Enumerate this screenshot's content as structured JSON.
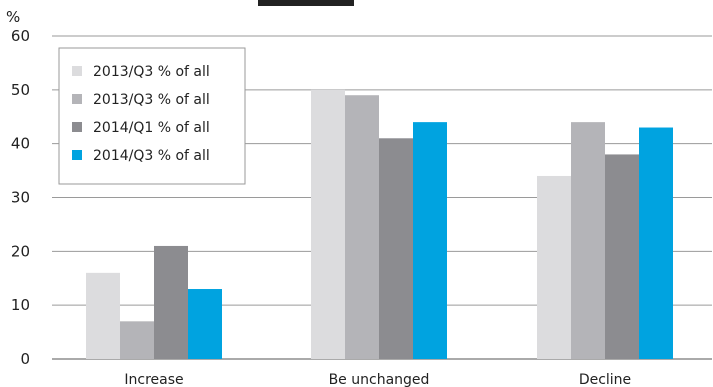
{
  "chart_data": {
    "type": "bar",
    "title": "",
    "ylabel": "%",
    "xlabel": "",
    "ylim": [
      0,
      60
    ],
    "yticks": [
      0,
      10,
      20,
      30,
      40,
      50,
      60
    ],
    "grid": "horizontal",
    "legend_position": "top-left",
    "categories": [
      "Increase",
      "Be unchanged",
      "Decline"
    ],
    "series": [
      {
        "name": "2013/Q3 % of all",
        "color": "#dcdcde",
        "values": [
          16,
          50,
          34
        ]
      },
      {
        "name": "2013/Q3 % of all",
        "color": "#b4b4b8",
        "values": [
          7,
          49,
          44
        ]
      },
      {
        "name": "2014/Q1 % of all",
        "color": "#8c8c90",
        "values": [
          21,
          41,
          38
        ]
      },
      {
        "name": "2014/Q3 % of all",
        "color": "#00a3e0",
        "values": [
          13,
          44,
          43
        ]
      }
    ]
  }
}
